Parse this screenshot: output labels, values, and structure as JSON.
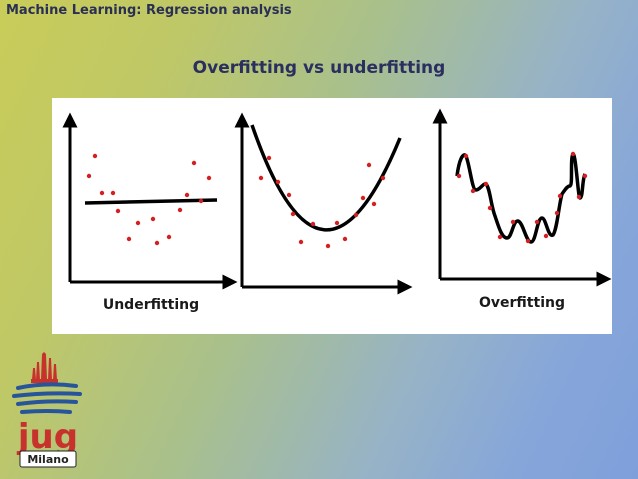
{
  "slide": {
    "header": "Machine Learning: Regression analysis",
    "title": "Overfitting vs underfitting"
  },
  "figure": {
    "label_left": "Underfitting",
    "label_right": "Overfitting"
  },
  "logo": {
    "brand": "jug",
    "city": "Milano"
  },
  "colors": {
    "point": "#d42020",
    "curve": "#000000",
    "title": "#2a2f60",
    "logo_red": "#c8322c",
    "logo_blue": "#28549c"
  }
}
